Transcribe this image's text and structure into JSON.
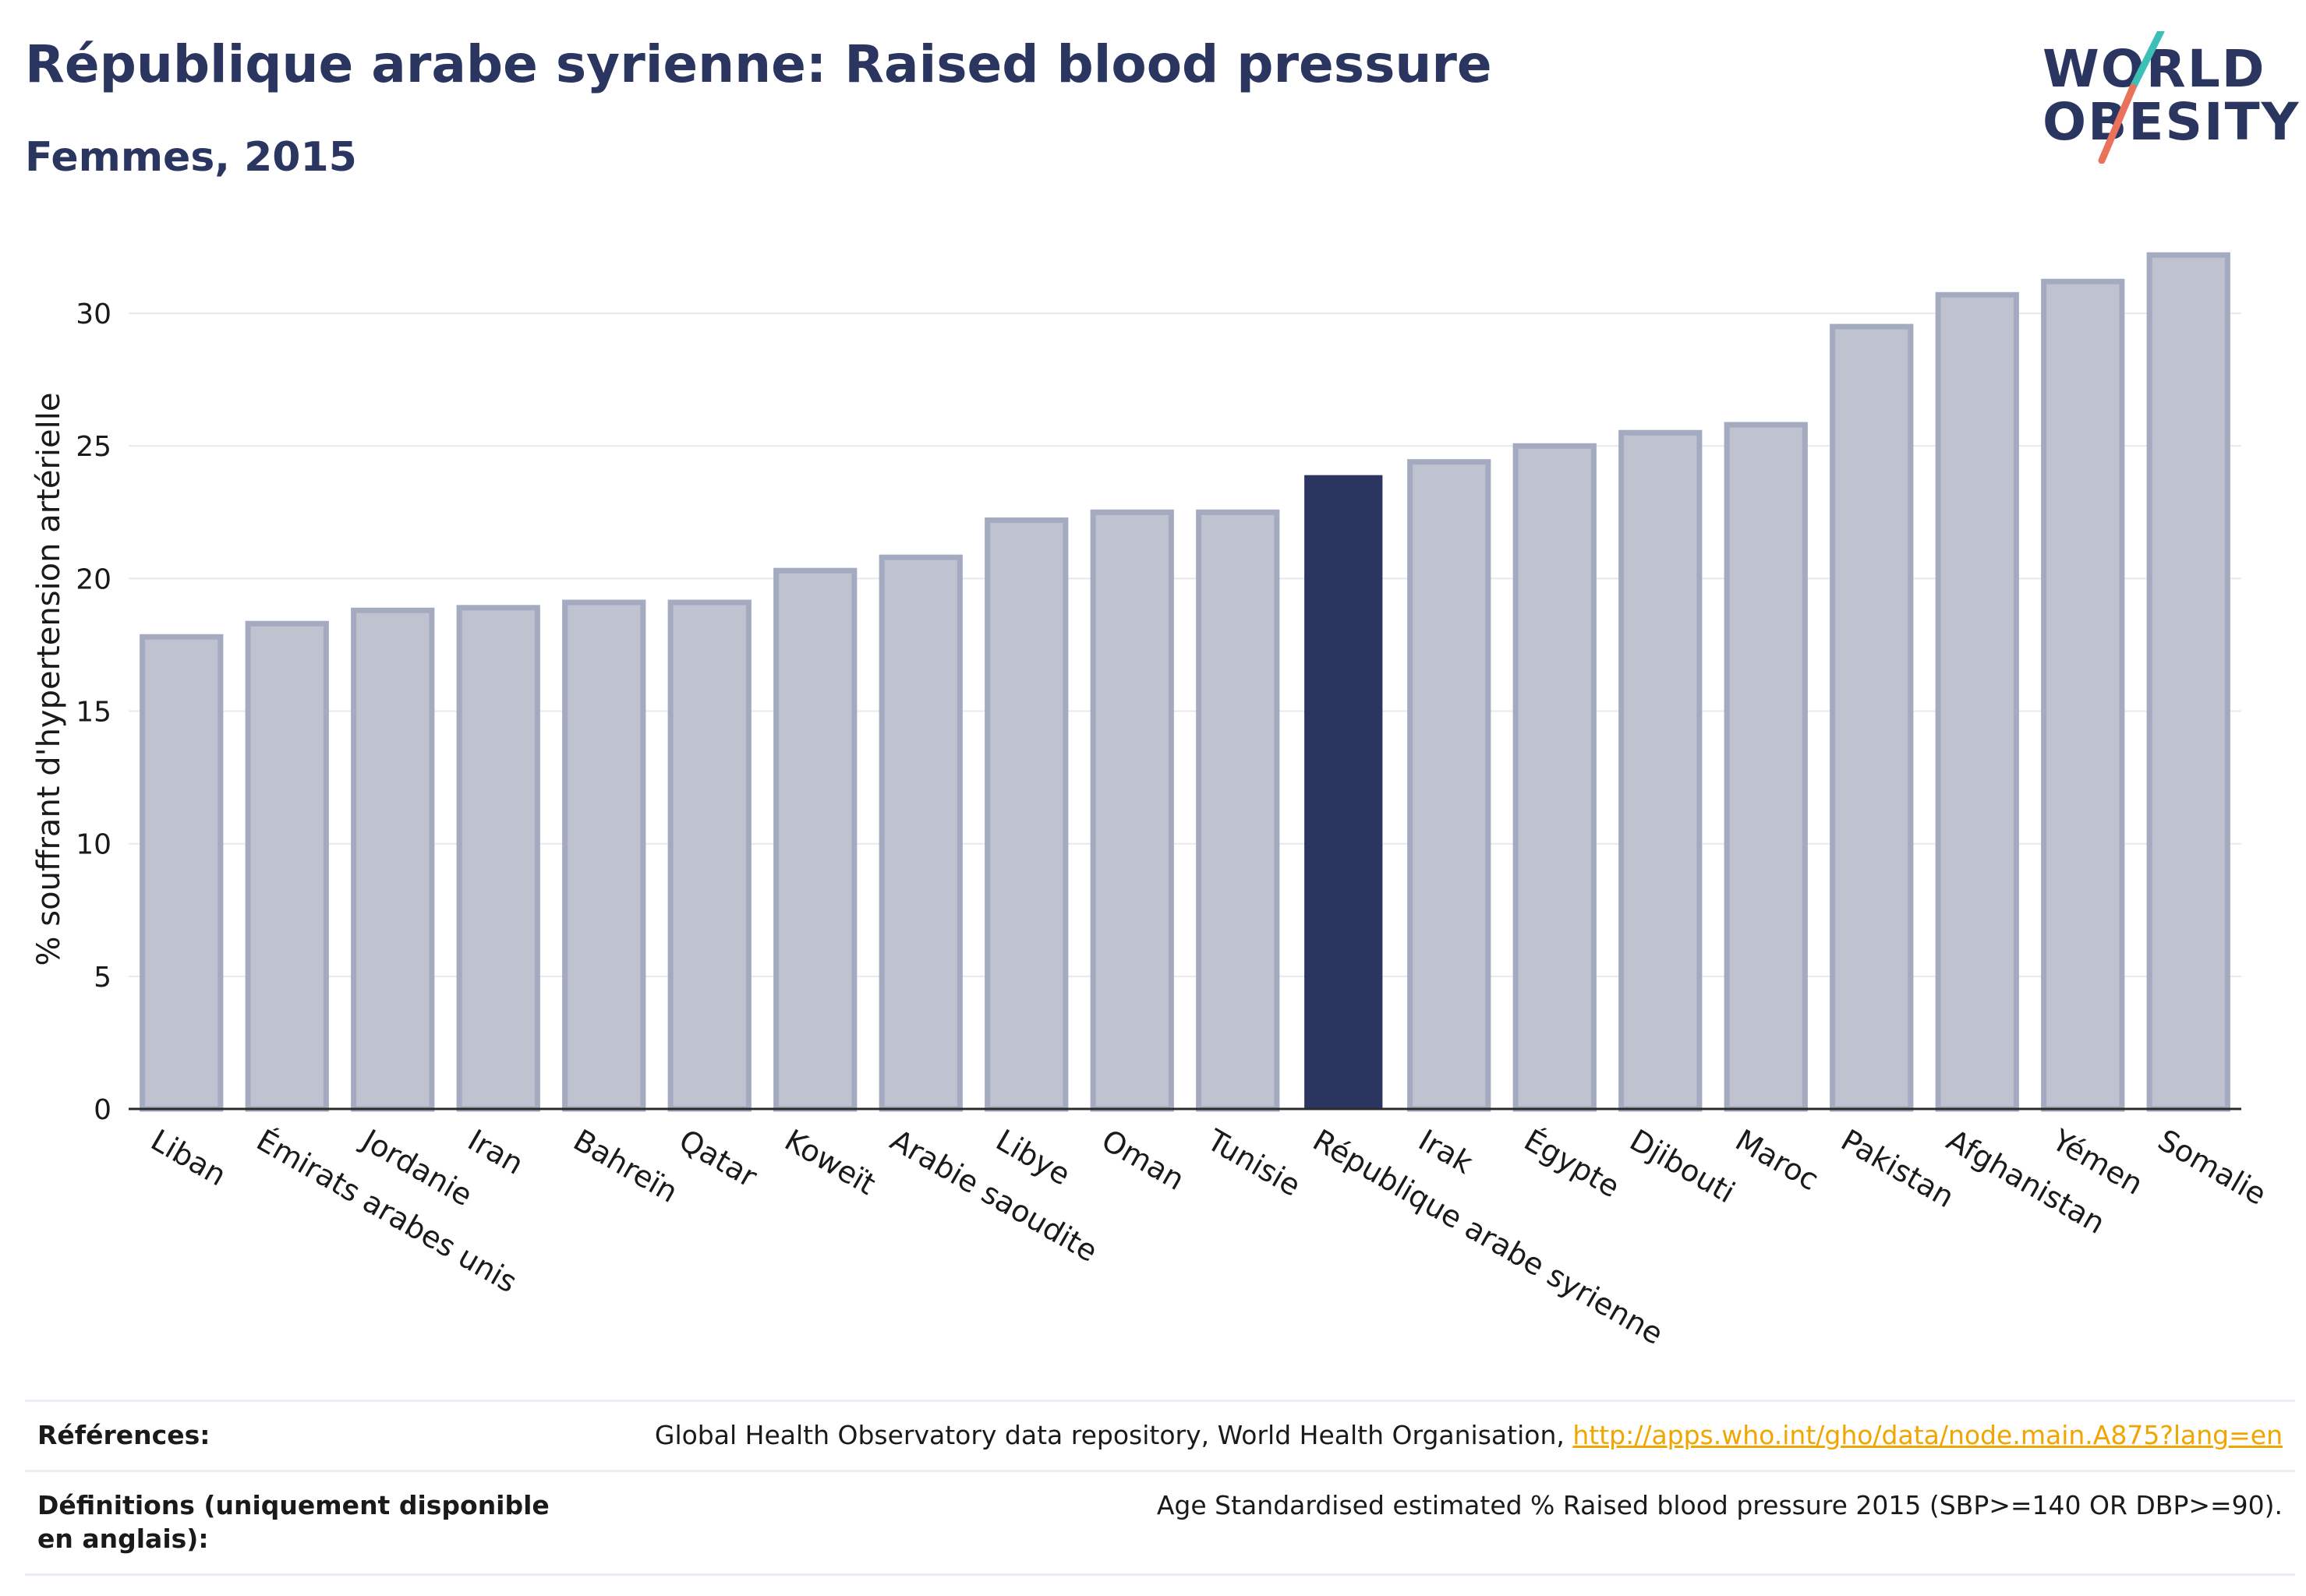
{
  "header": {
    "title": "République arabe syrienne: Raised blood pressure",
    "subtitle": "Femmes, 2015"
  },
  "logo": {
    "line1": "WORLD",
    "line2": "OBESITY",
    "slash_colors": [
      "#3bbfb7",
      "#e8735a"
    ]
  },
  "chart_data": {
    "type": "bar",
    "ylabel": "% souffrant d'hypertension artérielle",
    "ylim": [
      0,
      33
    ],
    "yticks": [
      0,
      5,
      10,
      15,
      20,
      25,
      30
    ],
    "grid": true,
    "highlight": "République arabe syrienne",
    "colors": {
      "bar": "#bfc3d0",
      "bar_edge": "#a4aac0",
      "highlight": "#2a3560",
      "grid": "#e8e8ee",
      "axis": "#2b2b2b"
    },
    "categories": [
      "Liban",
      "Émirats arabes unis",
      "Jordanie",
      "Iran",
      "Bahreïn",
      "Qatar",
      "Koweït",
      "Arabie saoudite",
      "Libye",
      "Oman",
      "Tunisie",
      "République arabe syrienne",
      "Irak",
      "Égypte",
      "Djibouti",
      "Maroc",
      "Pakistan",
      "Afghanistan",
      "Yémen",
      "Somalie"
    ],
    "values": [
      17.8,
      18.3,
      18.8,
      18.9,
      19.1,
      19.1,
      20.3,
      20.8,
      22.2,
      22.5,
      22.5,
      23.9,
      24.4,
      25.0,
      25.5,
      25.8,
      29.5,
      30.7,
      31.2,
      32.2
    ]
  },
  "footer": {
    "references_label": "Références:",
    "references_text": "Global Health Observatory data repository, World Health Organisation, ",
    "references_link": "http://apps.who.int/gho/data/node.main.A875?lang=en",
    "definitions_label": "Définitions (uniquement disponible en anglais):",
    "definitions_text": "Age Standardised estimated % Raised blood pressure 2015 (SBP>=140 OR DBP>=90)."
  }
}
